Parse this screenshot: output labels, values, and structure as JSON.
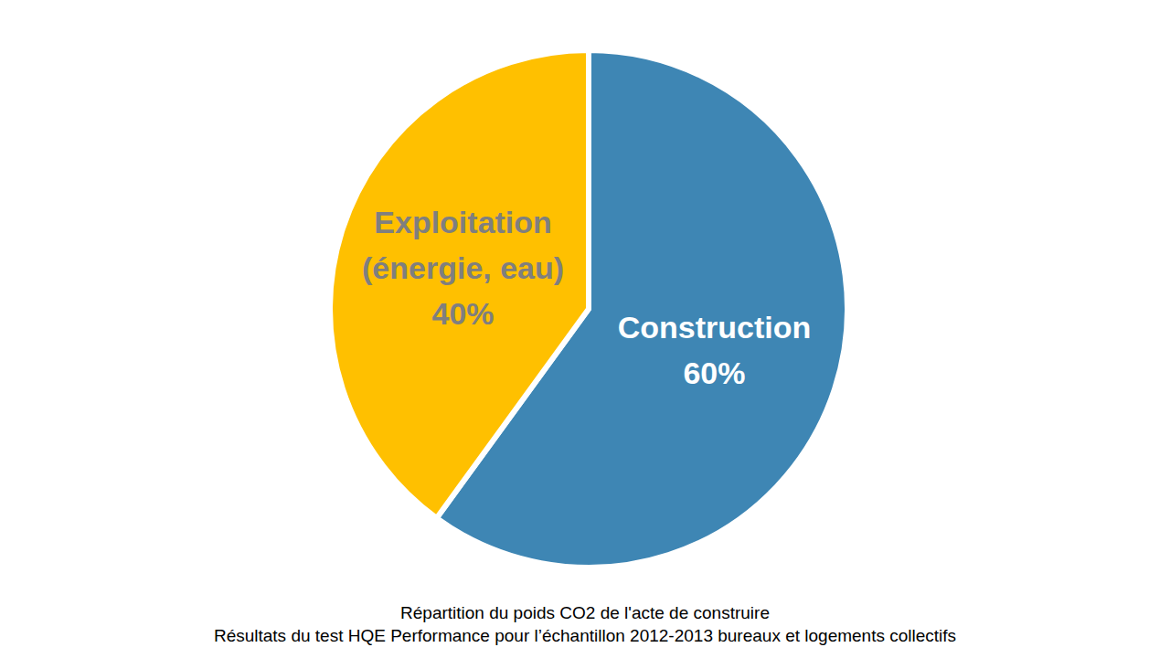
{
  "chart_data": {
    "type": "pie",
    "title": "Répartition du poids CO2 de l'acte de construire",
    "subtitle": "Résultats du test HQE Performance pour l’échantillon 2012-2013 bureaux et logements collectifs",
    "categories": [
      "Construction",
      "Exploitation (énergie, eau)"
    ],
    "values": [
      60,
      40
    ],
    "value_labels": [
      "60%",
      "40%"
    ],
    "colors": [
      "#3e86b4",
      "#ffc000"
    ],
    "data_labels": true
  }
}
